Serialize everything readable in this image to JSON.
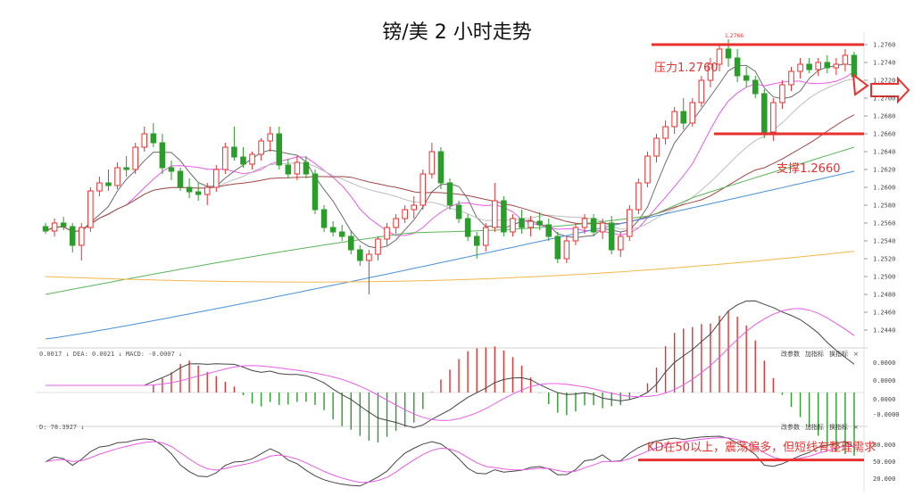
{
  "title": "镑/美 2 小时走势",
  "chart_data": {
    "type": "candlestick",
    "title": "镑/美 2 小时走势",
    "price_axis": {
      "ticks": [
        "1.2760",
        "1.2740",
        "1.2720",
        "1.2700",
        "1.2680",
        "1.2660",
        "1.2640",
        "1.2620",
        "1.2600",
        "1.2580",
        "1.2560",
        "1.2540",
        "1.2520",
        "1.2500",
        "1.2480",
        "1.2460",
        "1.2440"
      ],
      "range": [
        1.243,
        1.277
      ]
    },
    "candles": [
      {
        "o": 1.2556,
        "h": 1.256,
        "l": 1.2548,
        "c": 1.2551
      },
      {
        "o": 1.2551,
        "h": 1.2565,
        "l": 1.2545,
        "c": 1.256
      },
      {
        "o": 1.256,
        "h": 1.2567,
        "l": 1.2552,
        "c": 1.2556
      },
      {
        "o": 1.2556,
        "h": 1.256,
        "l": 1.2527,
        "c": 1.2535
      },
      {
        "o": 1.2535,
        "h": 1.256,
        "l": 1.2518,
        "c": 1.2555
      },
      {
        "o": 1.2555,
        "h": 1.26,
        "l": 1.255,
        "c": 1.2596
      },
      {
        "o": 1.2596,
        "h": 1.2612,
        "l": 1.259,
        "c": 1.2605
      },
      {
        "o": 1.2605,
        "h": 1.262,
        "l": 1.2596,
        "c": 1.2602
      },
      {
        "o": 1.2602,
        "h": 1.2628,
        "l": 1.2598,
        "c": 1.2622
      },
      {
        "o": 1.2622,
        "h": 1.2635,
        "l": 1.2612,
        "c": 1.262
      },
      {
        "o": 1.262,
        "h": 1.265,
        "l": 1.2615,
        "c": 1.2645
      },
      {
        "o": 1.2645,
        "h": 1.2668,
        "l": 1.264,
        "c": 1.266
      },
      {
        "o": 1.266,
        "h": 1.2672,
        "l": 1.2645,
        "c": 1.265
      },
      {
        "o": 1.265,
        "h": 1.266,
        "l": 1.2615,
        "c": 1.2622
      },
      {
        "o": 1.2622,
        "h": 1.263,
        "l": 1.2608,
        "c": 1.2618
      },
      {
        "o": 1.2618,
        "h": 1.2622,
        "l": 1.2596,
        "c": 1.26
      },
      {
        "o": 1.26,
        "h": 1.261,
        "l": 1.2588,
        "c": 1.2595
      },
      {
        "o": 1.2595,
        "h": 1.2605,
        "l": 1.2585,
        "c": 1.2592
      },
      {
        "o": 1.2592,
        "h": 1.2605,
        "l": 1.258,
        "c": 1.26
      },
      {
        "o": 1.26,
        "h": 1.2625,
        "l": 1.2595,
        "c": 1.262
      },
      {
        "o": 1.262,
        "h": 1.265,
        "l": 1.2615,
        "c": 1.2645
      },
      {
        "o": 1.2645,
        "h": 1.2668,
        "l": 1.263,
        "c": 1.2634
      },
      {
        "o": 1.2634,
        "h": 1.2645,
        "l": 1.2622,
        "c": 1.2626
      },
      {
        "o": 1.2626,
        "h": 1.264,
        "l": 1.262,
        "c": 1.2637
      },
      {
        "o": 1.2637,
        "h": 1.2655,
        "l": 1.263,
        "c": 1.2652
      },
      {
        "o": 1.2652,
        "h": 1.2668,
        "l": 1.264,
        "c": 1.266
      },
      {
        "o": 1.266,
        "h": 1.2668,
        "l": 1.262,
        "c": 1.2625
      },
      {
        "o": 1.2625,
        "h": 1.2632,
        "l": 1.261,
        "c": 1.2615
      },
      {
        "o": 1.2615,
        "h": 1.2635,
        "l": 1.2608,
        "c": 1.2628
      },
      {
        "o": 1.2628,
        "h": 1.2635,
        "l": 1.261,
        "c": 1.2615
      },
      {
        "o": 1.2615,
        "h": 1.262,
        "l": 1.257,
        "c": 1.2575
      },
      {
        "o": 1.2575,
        "h": 1.258,
        "l": 1.255,
        "c": 1.2555
      },
      {
        "o": 1.2555,
        "h": 1.2562,
        "l": 1.2545,
        "c": 1.255
      },
      {
        "o": 1.255,
        "h": 1.2558,
        "l": 1.254,
        "c": 1.2545
      },
      {
        "o": 1.2545,
        "h": 1.2552,
        "l": 1.2525,
        "c": 1.253
      },
      {
        "o": 1.253,
        "h": 1.2535,
        "l": 1.2512,
        "c": 1.2518
      },
      {
        "o": 1.2518,
        "h": 1.253,
        "l": 1.248,
        "c": 1.2525
      },
      {
        "o": 1.2525,
        "h": 1.2545,
        "l": 1.2518,
        "c": 1.2542
      },
      {
        "o": 1.2542,
        "h": 1.256,
        "l": 1.2535,
        "c": 1.2555
      },
      {
        "o": 1.2555,
        "h": 1.257,
        "l": 1.2548,
        "c": 1.2565
      },
      {
        "o": 1.2565,
        "h": 1.258,
        "l": 1.256,
        "c": 1.2575
      },
      {
        "o": 1.2575,
        "h": 1.259,
        "l": 1.2565,
        "c": 1.258
      },
      {
        "o": 1.258,
        "h": 1.262,
        "l": 1.2575,
        "c": 1.2615
      },
      {
        "o": 1.2615,
        "h": 1.265,
        "l": 1.261,
        "c": 1.264
      },
      {
        "o": 1.264,
        "h": 1.2645,
        "l": 1.2598,
        "c": 1.2605
      },
      {
        "o": 1.2605,
        "h": 1.261,
        "l": 1.2575,
        "c": 1.258
      },
      {
        "o": 1.258,
        "h": 1.2585,
        "l": 1.256,
        "c": 1.2565
      },
      {
        "o": 1.2565,
        "h": 1.257,
        "l": 1.254,
        "c": 1.2545
      },
      {
        "o": 1.2545,
        "h": 1.255,
        "l": 1.252,
        "c": 1.2535
      },
      {
        "o": 1.2535,
        "h": 1.256,
        "l": 1.2528,
        "c": 1.2555
      },
      {
        "o": 1.2555,
        "h": 1.2605,
        "l": 1.255,
        "c": 1.2585
      },
      {
        "o": 1.2585,
        "h": 1.259,
        "l": 1.2545,
        "c": 1.255
      },
      {
        "o": 1.255,
        "h": 1.257,
        "l": 1.2545,
        "c": 1.2565
      },
      {
        "o": 1.2565,
        "h": 1.2575,
        "l": 1.2548,
        "c": 1.2555
      },
      {
        "o": 1.2555,
        "h": 1.2568,
        "l": 1.2545,
        "c": 1.2562
      },
      {
        "o": 1.2562,
        "h": 1.2572,
        "l": 1.2552,
        "c": 1.2558
      },
      {
        "o": 1.2558,
        "h": 1.2565,
        "l": 1.254,
        "c": 1.2545
      },
      {
        "o": 1.2545,
        "h": 1.255,
        "l": 1.2515,
        "c": 1.252
      },
      {
        "o": 1.252,
        "h": 1.2545,
        "l": 1.2515,
        "c": 1.254
      },
      {
        "o": 1.254,
        "h": 1.256,
        "l": 1.2535,
        "c": 1.2555
      },
      {
        "o": 1.2555,
        "h": 1.257,
        "l": 1.2548,
        "c": 1.2565
      },
      {
        "o": 1.2565,
        "h": 1.257,
        "l": 1.2545,
        "c": 1.255
      },
      {
        "o": 1.255,
        "h": 1.2565,
        "l": 1.2542,
        "c": 1.256
      },
      {
        "o": 1.256,
        "h": 1.2568,
        "l": 1.2525,
        "c": 1.253
      },
      {
        "o": 1.253,
        "h": 1.255,
        "l": 1.2522,
        "c": 1.2545
      },
      {
        "o": 1.2545,
        "h": 1.258,
        "l": 1.254,
        "c": 1.2575
      },
      {
        "o": 1.2575,
        "h": 1.261,
        "l": 1.257,
        "c": 1.2605
      },
      {
        "o": 1.2605,
        "h": 1.264,
        "l": 1.26,
        "c": 1.2635
      },
      {
        "o": 1.2635,
        "h": 1.266,
        "l": 1.2628,
        "c": 1.2655
      },
      {
        "o": 1.2655,
        "h": 1.2675,
        "l": 1.2648,
        "c": 1.2668
      },
      {
        "o": 1.2668,
        "h": 1.269,
        "l": 1.266,
        "c": 1.2685
      },
      {
        "o": 1.2685,
        "h": 1.27,
        "l": 1.2665,
        "c": 1.2672
      },
      {
        "o": 1.2672,
        "h": 1.27,
        "l": 1.2668,
        "c": 1.2695
      },
      {
        "o": 1.2695,
        "h": 1.2725,
        "l": 1.269,
        "c": 1.272
      },
      {
        "o": 1.272,
        "h": 1.2745,
        "l": 1.2712,
        "c": 1.2738
      },
      {
        "o": 1.2738,
        "h": 1.276,
        "l": 1.273,
        "c": 1.2755
      },
      {
        "o": 1.2755,
        "h": 1.2766,
        "l": 1.2735,
        "c": 1.2745
      },
      {
        "o": 1.2745,
        "h": 1.2755,
        "l": 1.2718,
        "c": 1.2725
      },
      {
        "o": 1.2725,
        "h": 1.2735,
        "l": 1.2712,
        "c": 1.272
      },
      {
        "o": 1.272,
        "h": 1.2725,
        "l": 1.27,
        "c": 1.2705
      },
      {
        "o": 1.2705,
        "h": 1.271,
        "l": 1.2655,
        "c": 1.2662
      },
      {
        "o": 1.2662,
        "h": 1.27,
        "l": 1.2652,
        "c": 1.2695
      },
      {
        "o": 1.2695,
        "h": 1.272,
        "l": 1.2688,
        "c": 1.2715
      },
      {
        "o": 1.2715,
        "h": 1.2735,
        "l": 1.2708,
        "c": 1.273
      },
      {
        "o": 1.273,
        "h": 1.2745,
        "l": 1.2722,
        "c": 1.2738
      },
      {
        "o": 1.2738,
        "h": 1.2745,
        "l": 1.2728,
        "c": 1.2732
      },
      {
        "o": 1.2732,
        "h": 1.2745,
        "l": 1.2725,
        "c": 1.274
      },
      {
        "o": 1.274,
        "h": 1.2748,
        "l": 1.2728,
        "c": 1.2734
      },
      {
        "o": 1.2734,
        "h": 1.2745,
        "l": 1.2726,
        "c": 1.2738
      },
      {
        "o": 1.2738,
        "h": 1.2755,
        "l": 1.273,
        "c": 1.2748
      },
      {
        "o": 1.2748,
        "h": 1.2752,
        "l": 1.2718,
        "c": 1.2724
      }
    ],
    "moving_averages": [
      {
        "color": "#6b6b6b",
        "period": 5
      },
      {
        "color": "#e85ce6",
        "period": 10
      },
      {
        "color": "#bdbdbd",
        "period": 20
      },
      {
        "color": "#a04646",
        "period": 30
      },
      {
        "color": "#5ab55a",
        "period": 60
      },
      {
        "color": "#4a90d9",
        "period": 120
      },
      {
        "color": "#f2b84b",
        "period": 240
      }
    ],
    "levels": [
      {
        "label": "压力1.2760",
        "value": 1.276
      },
      {
        "label": "支撑1.2660",
        "value": 1.266
      }
    ],
    "peak_label": "1.2766",
    "macd": {
      "header": "0.0017 ↓ DEA: 0.0021 ↓ MACD: -0.0007 ↓",
      "ticks": [
        "0.0000",
        "0.0000",
        "0.0000",
        "-0.0000"
      ],
      "buttons": [
        "改参数",
        "加指标",
        "换指标",
        "×"
      ]
    },
    "kd": {
      "header": "D: 78.3927 ↓",
      "ticks": [
        "80.000",
        "50.000",
        "20.000"
      ],
      "buttons": [
        "改参数",
        "加指标",
        "换指标",
        "×"
      ],
      "annotation": "KD在50以上，震荡偏多，但短线有整理需求",
      "level": 50
    },
    "colors": {
      "up": "#e8312f",
      "down": "#2a9d2a",
      "level": "#e8312f"
    }
  }
}
